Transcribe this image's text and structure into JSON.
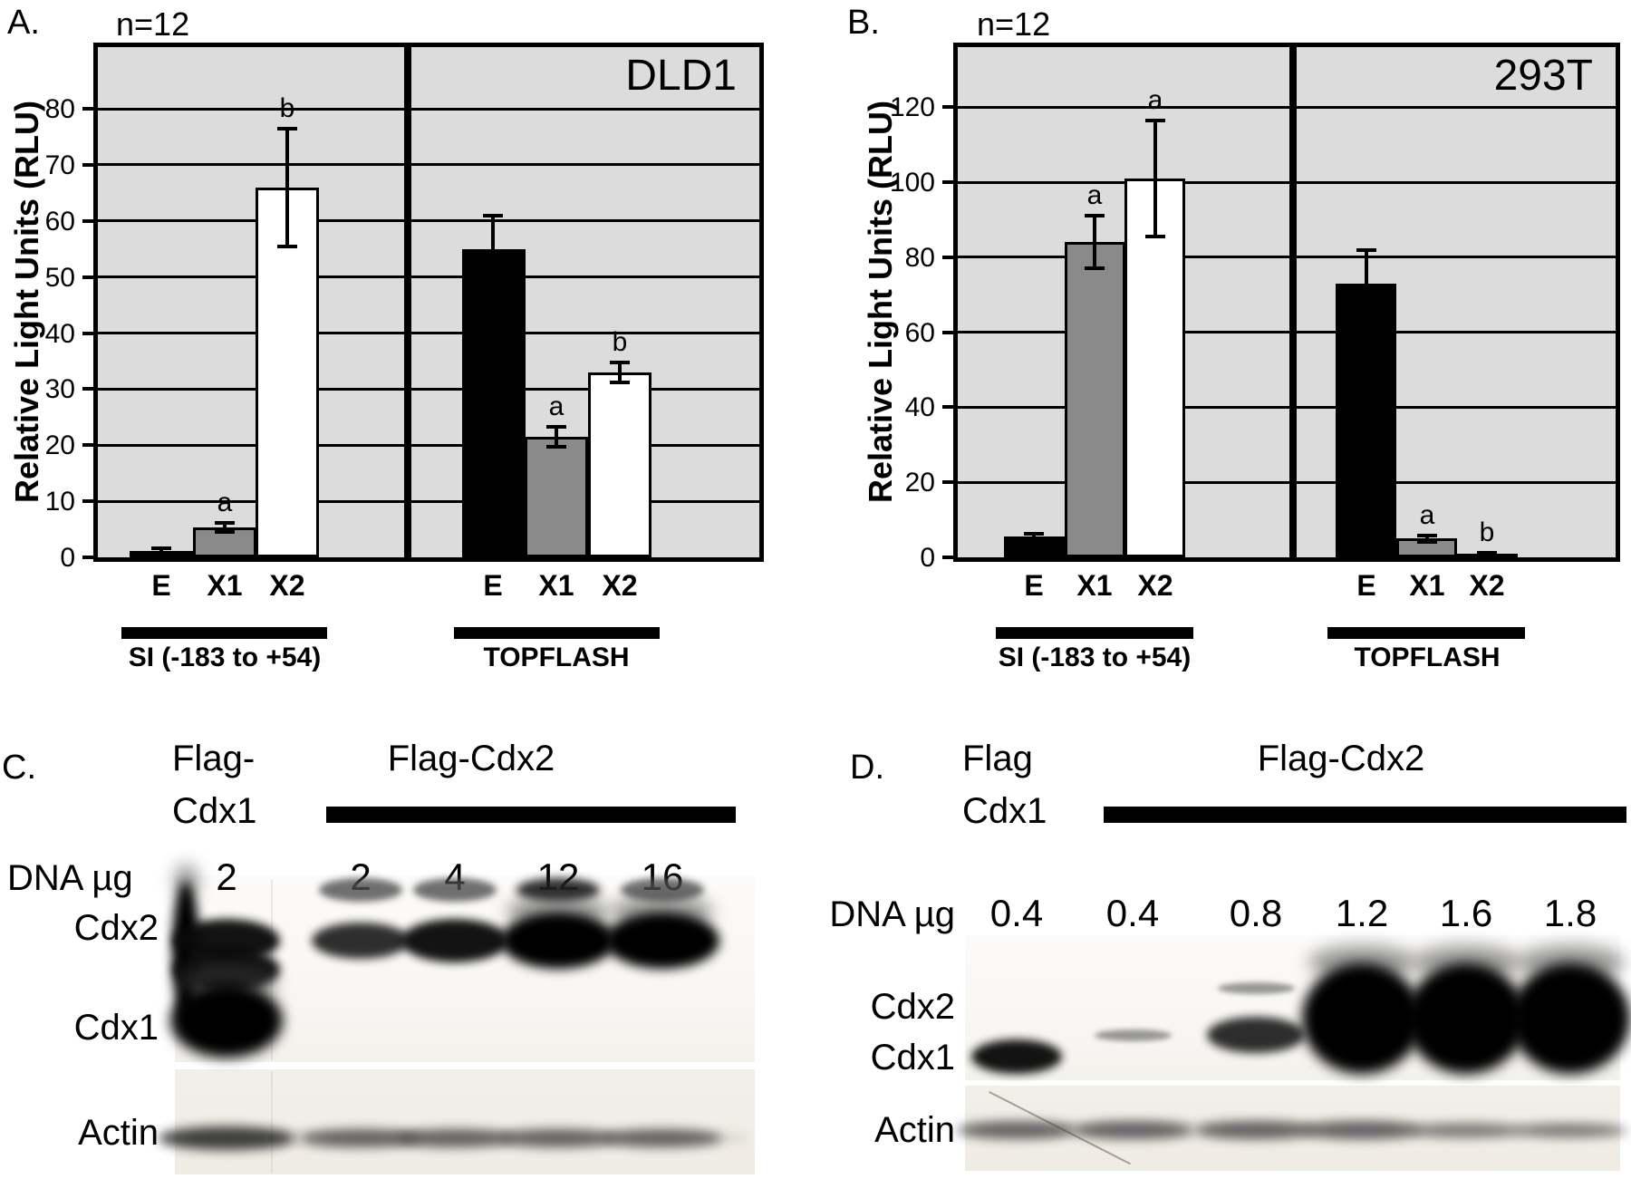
{
  "chart_data": [
    {
      "panel_label": "A.",
      "n_label": "n=12",
      "cell_line": "DLD1",
      "type": "bar",
      "ylabel": "Relative Light Units (RLU)",
      "ylim": [
        0,
        91
      ],
      "yticks": [
        0,
        10,
        20,
        30,
        40,
        50,
        60,
        70,
        80
      ],
      "grid": true,
      "legend_position": "none",
      "categories": [
        "E",
        "X1",
        "X2"
      ],
      "groups": [
        {
          "label": "SI (-183 to +54)",
          "bars": [
            {
              "category": "E",
              "value": 1.2,
              "error": 0.4,
              "fill": "#000000",
              "letter": ""
            },
            {
              "category": "X1",
              "value": 5.3,
              "error": 0.8,
              "fill": "#8a8a8a",
              "letter": "a"
            },
            {
              "category": "X2",
              "value": 66,
              "error": 10.5,
              "fill": "#ffffff",
              "letter": "b"
            }
          ]
        },
        {
          "label": "TOPFLASH",
          "bars": [
            {
              "category": "E",
              "value": 55,
              "error": 6,
              "fill": "#000000",
              "letter": ""
            },
            {
              "category": "X1",
              "value": 21.5,
              "error": 1.8,
              "fill": "#8a8a8a",
              "letter": "a"
            },
            {
              "category": "X2",
              "value": 33,
              "error": 1.8,
              "fill": "#ffffff",
              "letter": "b"
            }
          ]
        }
      ]
    },
    {
      "panel_label": "B.",
      "n_label": "n=12",
      "cell_line": "293T",
      "type": "bar",
      "ylabel": "Relative Light Units (RLU)",
      "ylim": [
        0,
        136
      ],
      "yticks": [
        0,
        20,
        40,
        60,
        80,
        100,
        120
      ],
      "grid": true,
      "legend_position": "none",
      "categories": [
        "E",
        "X1",
        "X2"
      ],
      "groups": [
        {
          "label": "SI (-183 to +54)",
          "bars": [
            {
              "category": "E",
              "value": 5.5,
              "error": 0.8,
              "fill": "#000000",
              "letter": ""
            },
            {
              "category": "X1",
              "value": 84,
              "error": 7,
              "fill": "#8a8a8a",
              "letter": "a"
            },
            {
              "category": "X2",
              "value": 101,
              "error": 15.5,
              "fill": "#ffffff",
              "letter": "a"
            }
          ]
        },
        {
          "label": "TOPFLASH",
          "bars": [
            {
              "category": "E",
              "value": 73,
              "error": 9,
              "fill": "#000000",
              "letter": ""
            },
            {
              "category": "X1",
              "value": 5,
              "error": 0.8,
              "fill": "#8a8a8a",
              "letter": "a"
            },
            {
              "category": "X2",
              "value": 1,
              "error": 0.3,
              "fill": "#ffffff",
              "letter": "b"
            }
          ]
        }
      ]
    }
  ],
  "blots": [
    {
      "panel_label": "C.",
      "left_header_line1": "Flag-",
      "left_header_line2": "Cdx1",
      "right_header": "Flag-Cdx2",
      "dna_label": "DNA µg",
      "row_labels": {
        "cdx2": "Cdx2",
        "cdx1": "Cdx1",
        "actin": "Actin"
      },
      "lanes": [
        {
          "dna": "2",
          "bands": [
            {
              "row": "edge",
              "strength": "heavy"
            },
            {
              "row": "cdx2",
              "strength": "strong"
            },
            {
              "row": "cdx2b",
              "strength": "strong"
            },
            {
              "row": "cdx1",
              "strength": "massive"
            }
          ],
          "actin": "strong"
        },
        {
          "dna": "2",
          "bands": [
            {
              "row": "cap",
              "strength": "light"
            },
            {
              "row": "cdx2",
              "strength": "medium"
            }
          ],
          "actin": "medium"
        },
        {
          "dna": "4",
          "bands": [
            {
              "row": "cap",
              "strength": "light"
            },
            {
              "row": "cdx2",
              "strength": "strong"
            }
          ],
          "actin": "medium"
        },
        {
          "dna": "12",
          "bands": [
            {
              "row": "cap",
              "strength": "medium"
            },
            {
              "row": "cdx2",
              "strength": "heavy"
            }
          ],
          "actin": "medium"
        },
        {
          "dna": "16",
          "bands": [
            {
              "row": "cap",
              "strength": "light"
            },
            {
              "row": "cdx2",
              "strength": "heavy"
            }
          ],
          "actin": "medium"
        }
      ]
    },
    {
      "panel_label": "D.",
      "left_header_line1": "Flag",
      "left_header_line2": "Cdx1",
      "right_header": "Flag-Cdx2",
      "dna_label": "DNA µg",
      "row_labels": {
        "cdx2": "Cdx2",
        "cdx1": "Cdx1",
        "actin": "Actin"
      },
      "lanes": [
        {
          "dna": "0.4",
          "bands": [
            {
              "row": "cdx1",
              "strength": "strong"
            }
          ],
          "actin": "medium"
        },
        {
          "dna": "0.4",
          "bands": [
            {
              "row": "cdx2",
              "strength": "faint"
            }
          ],
          "actin": "medium"
        },
        {
          "dna": "0.8",
          "bands": [
            {
              "row": "cdx2",
              "strength": "medium"
            },
            {
              "row": "cdx2_upper",
              "strength": "faint"
            }
          ],
          "actin": "medium"
        },
        {
          "dna": "1.2",
          "bands": [
            {
              "row": "blob",
              "strength": "massive"
            }
          ],
          "actin": "medium"
        },
        {
          "dna": "1.6",
          "bands": [
            {
              "row": "blob",
              "strength": "massive"
            }
          ],
          "actin": "light"
        },
        {
          "dna": "1.8",
          "bands": [
            {
              "row": "blob",
              "strength": "massive"
            }
          ],
          "actin": "light"
        }
      ]
    }
  ]
}
